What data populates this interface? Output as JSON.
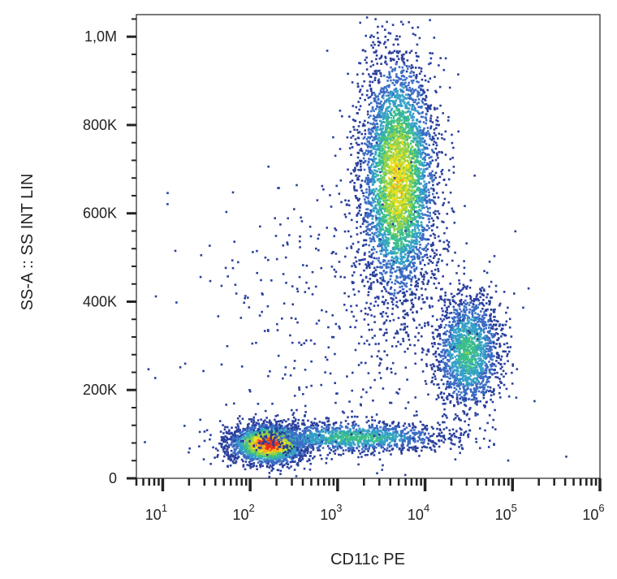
{
  "chart_data": {
    "type": "scatter",
    "style": "flow cytometry density dot plot",
    "xlabel": "CD11c PE",
    "ylabel": "SS-A :: SS INT LIN",
    "x_scale": "log",
    "x_range": [
      5,
      1000000
    ],
    "x_ticks": [
      {
        "value": 10,
        "base": "10",
        "exp": "1"
      },
      {
        "value": 100,
        "base": "10",
        "exp": "2"
      },
      {
        "value": 1000,
        "base": "10",
        "exp": "3"
      },
      {
        "value": 10000,
        "base": "10",
        "exp": "4"
      },
      {
        "value": 100000,
        "base": "10",
        "exp": "5"
      },
      {
        "value": 1000000,
        "base": "10",
        "exp": "6"
      }
    ],
    "y_scale": "linear",
    "y_range": [
      0,
      1050000
    ],
    "y_ticks": [
      {
        "value": 0,
        "label": "0"
      },
      {
        "value": 200000,
        "label": "200K"
      },
      {
        "value": 400000,
        "label": "400K"
      },
      {
        "value": 600000,
        "label": "600K"
      },
      {
        "value": 800000,
        "label": "800K"
      },
      {
        "value": 1000000,
        "label": "1,0M"
      }
    ],
    "color_scale": [
      "#2a3f9c",
      "#3b6cc4",
      "#35a0c8",
      "#3cbf8a",
      "#8fd14a",
      "#e8e020",
      "#f5a31c",
      "#e8301c"
    ],
    "populations": [
      {
        "x_center": 160,
        "y_center": 80000,
        "x_spread_decades": 0.22,
        "y_spread": 22000,
        "count": 2600,
        "peak_density": 1.0
      },
      {
        "x_center": 1500,
        "y_center": 95000,
        "x_spread_decades": 0.55,
        "y_spread": 18000,
        "count": 1300,
        "peak_density": 0.45
      },
      {
        "x_center": 4800,
        "y_center": 680000,
        "x_spread_decades": 0.22,
        "y_spread": 140000,
        "count": 4200,
        "peak_density": 0.7
      },
      {
        "x_center": 30000,
        "y_center": 290000,
        "x_spread_decades": 0.2,
        "y_spread": 70000,
        "count": 1700,
        "peak_density": 0.45
      },
      {
        "x_center": 1000,
        "y_center": 350000,
        "x_spread_decades": 0.8,
        "y_spread": 200000,
        "count": 450,
        "peak_density": 0.05
      }
    ],
    "grid": false,
    "legend": "none"
  }
}
